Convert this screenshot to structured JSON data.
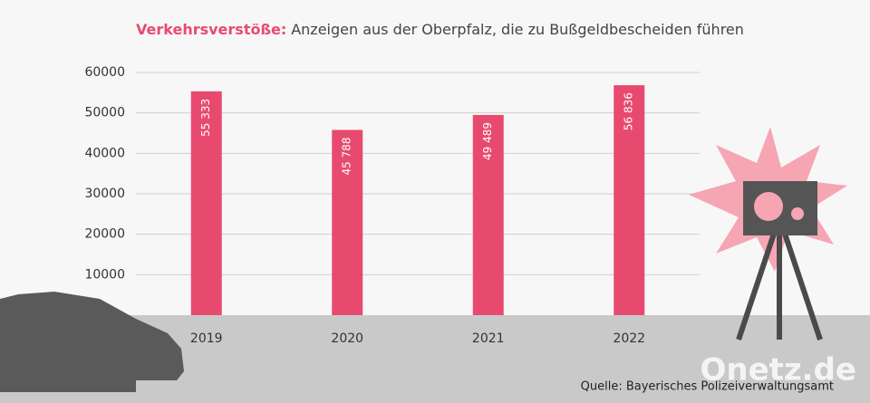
{
  "chart_data": {
    "type": "bar",
    "title": "Verkehrsverstöße:",
    "subtitle": "Anzeigen aus der Oberpfalz, die zu Bußgeldbescheiden führen",
    "categories": [
      "2019",
      "2020",
      "2021",
      "2022"
    ],
    "values": [
      55333,
      45788,
      49489,
      56836
    ],
    "value_labels": [
      "55 333",
      "45 788",
      "49 489",
      "56 836"
    ],
    "color": "#e84a6f",
    "ylim": [
      0,
      60000
    ],
    "yticks": [
      10000,
      20000,
      30000,
      40000,
      50000,
      60000
    ],
    "grid": true,
    "source": "Quelle: Bayerisches Polizeiverwaltungsamt",
    "watermark": "Onetz.de"
  }
}
